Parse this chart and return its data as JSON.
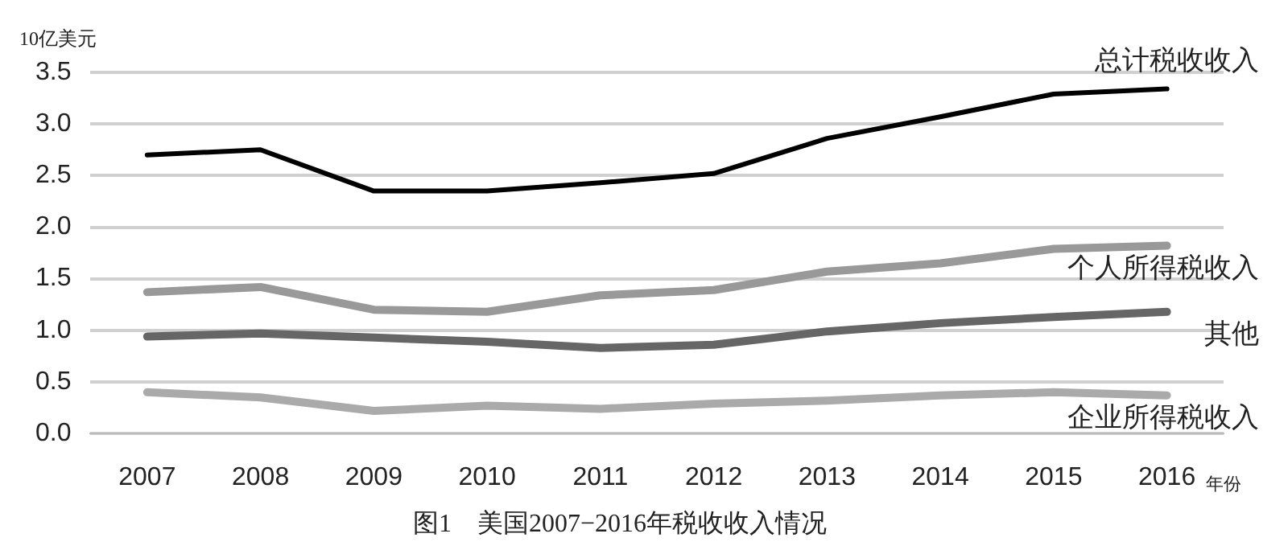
{
  "chart_data": {
    "type": "line",
    "title": "图1　美国2007−2016年税收收入情况",
    "ylabel": "10亿美元",
    "xlabel": "年份",
    "categories": [
      "2007",
      "2008",
      "2009",
      "2010",
      "2011",
      "2012",
      "2013",
      "2014",
      "2015",
      "2016"
    ],
    "series": [
      {
        "name": "总计税收收入",
        "color": "#000000",
        "values": [
          2.7,
          2.75,
          2.35,
          2.35,
          2.43,
          2.52,
          2.86,
          3.07,
          3.29,
          3.34
        ]
      },
      {
        "name": "个人所得税收入",
        "color": "#999999",
        "values": [
          1.37,
          1.42,
          1.2,
          1.18,
          1.34,
          1.39,
          1.57,
          1.65,
          1.79,
          1.82
        ]
      },
      {
        "name": "其他",
        "color": "#666666",
        "values": [
          0.94,
          0.97,
          0.93,
          0.89,
          0.83,
          0.86,
          0.99,
          1.07,
          1.13,
          1.18
        ]
      },
      {
        "name": "企业所得税收入",
        "color": "#aaaaaa",
        "values": [
          0.4,
          0.35,
          0.22,
          0.27,
          0.24,
          0.29,
          0.32,
          0.37,
          0.4,
          0.37
        ]
      }
    ],
    "ylim": [
      0,
      3.5
    ],
    "yticks": [
      {
        "value": 0,
        "label": "0.0"
      },
      0.5,
      {
        "value": 1,
        "label": "1.0"
      },
      1.5,
      {
        "value": 2,
        "label": "2.0"
      },
      2.5,
      {
        "value": 3,
        "label": "3.0"
      },
      3.5
    ],
    "grid": "y",
    "legend": false,
    "marker": "none",
    "line_style": "solid"
  }
}
